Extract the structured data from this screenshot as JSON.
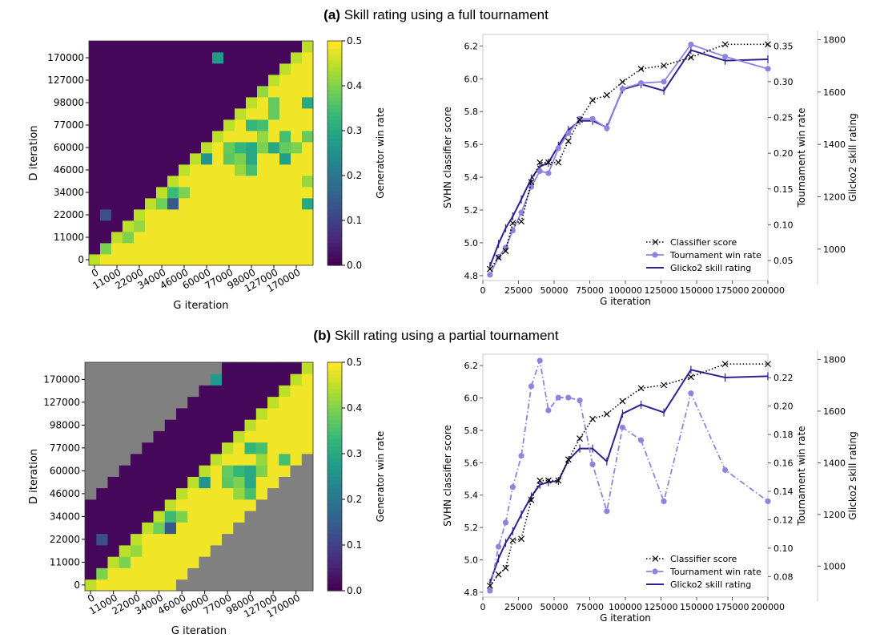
{
  "panels": [
    {
      "label": "(a)",
      "title": "Skill rating using a full tournament",
      "heatmap": {
        "xlabel": "G iteration",
        "ylabel": "D iteration",
        "colorbar_label": "Generator win rate",
        "colorbar_ticks": [
          "0.0",
          "0.1",
          "0.2",
          "0.3",
          "0.4",
          "0.5"
        ],
        "x_ticks": [
          "0",
          "11000",
          "22000",
          "34000",
          "46000",
          "60000",
          "77000",
          "98000",
          "127000",
          "170000"
        ],
        "y_ticks": [
          "0",
          "11000",
          "22000",
          "34000",
          "46000",
          "60000",
          "77000",
          "98000",
          "127000",
          "170000"
        ]
      },
      "line": {
        "xlabel": "G iteration",
        "ylabel_left": "SVHN classifier score",
        "ylabel_right": "Tournament win rate",
        "ylabel_far": "Glicko2 skill rating",
        "x_ticks": [
          "0",
          "25000",
          "50000",
          "75000",
          "100000",
          "125000",
          "150000",
          "175000",
          "200000"
        ],
        "y_left_ticks": [
          "4.8",
          "5.0",
          "5.2",
          "5.4",
          "5.6",
          "5.8",
          "6.0",
          "6.2"
        ],
        "y_right_ticks": [
          "0.05",
          "0.10",
          "0.15",
          "0.20",
          "0.25",
          "0.30",
          "0.35"
        ],
        "y_far_ticks": [
          "1000",
          "1200",
          "1400",
          "1600",
          "1800"
        ],
        "legend": [
          "Classifier score",
          "Tournament win rate",
          "Glicko2 skill rating"
        ]
      }
    },
    {
      "label": "(b)",
      "title": "Skill rating using a partial tournament",
      "heatmap": {
        "xlabel": "G iteration",
        "ylabel": "D iteration",
        "colorbar_label": "Generator win rate",
        "colorbar_ticks": [
          "0.0",
          "0.1",
          "0.2",
          "0.3",
          "0.4",
          "0.5"
        ],
        "x_ticks": [
          "0",
          "11000",
          "22000",
          "34000",
          "46000",
          "60000",
          "77000",
          "98000",
          "127000",
          "170000"
        ],
        "y_ticks": [
          "0",
          "11000",
          "22000",
          "34000",
          "46000",
          "60000",
          "77000",
          "98000",
          "127000",
          "170000"
        ]
      },
      "line": {
        "xlabel": "G iteration",
        "ylabel_left": "SVHN classifier score",
        "ylabel_right": "Tournament win rate",
        "ylabel_far": "Glicko2 skill rating",
        "x_ticks": [
          "0",
          "25000",
          "50000",
          "75000",
          "100000",
          "125000",
          "150000",
          "175000",
          "200000"
        ],
        "y_left_ticks": [
          "4.8",
          "5.0",
          "5.2",
          "5.4",
          "5.6",
          "5.8",
          "6.0",
          "6.2"
        ],
        "y_right_ticks": [
          "0.08",
          "0.10",
          "0.12",
          "0.14",
          "0.16",
          "0.18",
          "0.20",
          "0.22"
        ],
        "y_far_ticks": [
          "1000",
          "1200",
          "1400",
          "1600",
          "1800"
        ],
        "legend": [
          "Classifier score",
          "Tournament win rate",
          "Glicko2 skill rating"
        ]
      }
    }
  ],
  "colors": {
    "classifier": "#000000",
    "winrate": "#8f83e0",
    "glicko": "#2a2392",
    "not_played": "#808080"
  },
  "chart_data": [
    {
      "type": "heatmap",
      "panel": "a",
      "grid_size": 20,
      "x_range": [
        0,
        170000
      ],
      "y_range": [
        0,
        170000
      ],
      "value_range": [
        0.0,
        0.5
      ],
      "colormap": "viridis",
      "description_of_values": "Generator win rate of G checkpoint (column) vs D checkpoint (row); near 0.5 below the diagonal, near 0 above",
      "uniform_values": {
        "upper_left": 0.01,
        "lower_right": 0.49
      },
      "notable_cells": [
        {
          "row": 18,
          "col": 11,
          "value": 0.27
        },
        {
          "row": 15,
          "col": 15,
          "value": 0.42
        },
        {
          "row": 14,
          "col": 16,
          "value": 0.38
        },
        {
          "row": 14,
          "col": 19,
          "value": 0.3
        },
        {
          "row": 13,
          "col": 16,
          "value": 0.38
        },
        {
          "row": 12,
          "col": 14,
          "value": 0.33
        },
        {
          "row": 12,
          "col": 15,
          "value": 0.35
        },
        {
          "row": 11,
          "col": 15,
          "value": 0.42
        },
        {
          "row": 11,
          "col": 17,
          "value": 0.35
        },
        {
          "row": 11,
          "col": 19,
          "value": 0.38
        },
        {
          "row": 10,
          "col": 12,
          "value": 0.38
        },
        {
          "row": 10,
          "col": 13,
          "value": 0.33
        },
        {
          "row": 10,
          "col": 14,
          "value": 0.3
        },
        {
          "row": 10,
          "col": 15,
          "value": 0.4
        },
        {
          "row": 10,
          "col": 16,
          "value": 0.3
        },
        {
          "row": 10,
          "col": 17,
          "value": 0.38
        },
        {
          "row": 10,
          "col": 18,
          "value": 0.4
        },
        {
          "row": 9,
          "col": 10,
          "value": 0.26
        },
        {
          "row": 9,
          "col": 12,
          "value": 0.37
        },
        {
          "row": 9,
          "col": 13,
          "value": 0.4
        },
        {
          "row": 9,
          "col": 14,
          "value": 0.3
        },
        {
          "row": 9,
          "col": 17,
          "value": 0.28
        },
        {
          "row": 8,
          "col": 13,
          "value": 0.42
        },
        {
          "row": 8,
          "col": 14,
          "value": 0.35
        },
        {
          "row": 7,
          "col": 19,
          "value": 0.42
        },
        {
          "row": 6,
          "col": 7,
          "value": 0.34
        },
        {
          "row": 6,
          "col": 8,
          "value": 0.4
        },
        {
          "row": 5,
          "col": 6,
          "value": 0.39
        },
        {
          "row": 5,
          "col": 7,
          "value": 0.14
        },
        {
          "row": 5,
          "col": 19,
          "value": 0.3
        },
        {
          "row": 4,
          "col": 1,
          "value": 0.12
        },
        {
          "row": 3,
          "col": 4,
          "value": 0.42
        },
        {
          "row": 2,
          "col": 3,
          "value": 0.4
        },
        {
          "row": 1,
          "col": 1,
          "value": 0.4
        }
      ]
    },
    {
      "type": "line",
      "panel": "a",
      "xlabel": "G iteration",
      "xlim": [
        0,
        200000
      ],
      "series": [
        {
          "name": "Classifier score",
          "axis": "SVHN classifier score",
          "ylim": [
            4.77,
            6.27
          ],
          "x": [
            5000,
            11000,
            16000,
            21000,
            27000,
            34000,
            40000,
            46000,
            53000,
            60000,
            68000,
            77000,
            87000,
            98000,
            111000,
            127000,
            146000,
            170000,
            200000
          ],
          "y": [
            4.84,
            4.91,
            4.95,
            5.12,
            5.13,
            5.37,
            5.49,
            5.49,
            5.49,
            5.62,
            5.75,
            5.87,
            5.9,
            5.98,
            6.06,
            6.08,
            6.13,
            6.21,
            6.21
          ]
        },
        {
          "name": "Tournament win rate",
          "axis": "Tournament win rate",
          "ylim": [
            0.022,
            0.366
          ],
          "x": [
            5000,
            11000,
            16000,
            21000,
            27000,
            34000,
            40000,
            46000,
            53000,
            60000,
            68000,
            77000,
            87000,
            98000,
            111000,
            127000,
            146000,
            170000,
            200000
          ],
          "y": [
            0.03,
            0.055,
            0.068,
            0.092,
            0.117,
            0.153,
            0.175,
            0.172,
            0.207,
            0.228,
            0.248,
            0.248,
            0.235,
            0.29,
            0.298,
            0.3,
            0.352,
            0.335,
            0.318
          ]
        },
        {
          "name": "Glicko2 skill rating",
          "axis": "Glicko2 skill rating",
          "ylim": [
            880,
            1820
          ],
          "x": [
            5000,
            11000,
            16000,
            21000,
            27000,
            34000,
            40000,
            46000,
            53000,
            60000,
            68000,
            77000,
            87000,
            98000,
            111000,
            127000,
            146000,
            170000,
            200000
          ],
          "y": [
            935,
            1020,
            1080,
            1125,
            1190,
            1270,
            1315,
            1330,
            1395,
            1455,
            1490,
            1490,
            1465,
            1610,
            1630,
            1605,
            1760,
            1720,
            1725
          ]
        }
      ]
    },
    {
      "type": "heatmap",
      "panel": "b",
      "grid_size": 20,
      "x_range": [
        0,
        170000
      ],
      "y_range": [
        0,
        170000
      ],
      "value_range": [
        0.0,
        0.5
      ],
      "colormap": "viridis",
      "description_of_values": "Partial tournament: only cells near the diagonal evaluated, others shown grey (not played)",
      "uniform_values": {
        "upper_left": 0.01,
        "lower_right": 0.49
      },
      "notable_cells": [
        {
          "row": 18,
          "col": 11,
          "value": 0.27
        },
        {
          "row": 12,
          "col": 14,
          "value": 0.33
        },
        {
          "row": 12,
          "col": 15,
          "value": 0.35
        },
        {
          "row": 11,
          "col": 15,
          "value": 0.42
        },
        {
          "row": 11,
          "col": 17,
          "value": 0.35
        },
        {
          "row": 11,
          "col": 19,
          "value": 0.38
        },
        {
          "row": 10,
          "col": 12,
          "value": 0.38
        },
        {
          "row": 10,
          "col": 13,
          "value": 0.33
        },
        {
          "row": 10,
          "col": 14,
          "value": 0.3
        },
        {
          "row": 10,
          "col": 15,
          "value": 0.4
        },
        {
          "row": 9,
          "col": 10,
          "value": 0.26
        },
        {
          "row": 9,
          "col": 12,
          "value": 0.37
        },
        {
          "row": 9,
          "col": 13,
          "value": 0.4
        },
        {
          "row": 9,
          "col": 14,
          "value": 0.3
        },
        {
          "row": 8,
          "col": 13,
          "value": 0.42
        },
        {
          "row": 8,
          "col": 14,
          "value": 0.35
        },
        {
          "row": 6,
          "col": 7,
          "value": 0.34
        },
        {
          "row": 6,
          "col": 8,
          "value": 0.4
        },
        {
          "row": 5,
          "col": 6,
          "value": 0.39
        },
        {
          "row": 5,
          "col": 7,
          "value": 0.14
        },
        {
          "row": 4,
          "col": 1,
          "value": 0.12
        },
        {
          "row": 3,
          "col": 4,
          "value": 0.42
        },
        {
          "row": 2,
          "col": 3,
          "value": 0.4
        },
        {
          "row": 1,
          "col": 1,
          "value": 0.4
        }
      ]
    },
    {
      "type": "line",
      "panel": "b",
      "xlabel": "G iteration",
      "xlim": [
        0,
        200000
      ],
      "series": [
        {
          "name": "Classifier score",
          "axis": "SVHN classifier score",
          "ylim": [
            4.77,
            6.27
          ],
          "x": [
            5000,
            11000,
            16000,
            21000,
            27000,
            34000,
            40000,
            46000,
            53000,
            60000,
            68000,
            77000,
            87000,
            98000,
            111000,
            127000,
            146000,
            170000,
            200000
          ],
          "y": [
            4.84,
            4.91,
            4.95,
            5.12,
            5.13,
            5.37,
            5.49,
            5.49,
            5.49,
            5.62,
            5.75,
            5.87,
            5.9,
            5.98,
            6.06,
            6.08,
            6.13,
            6.21,
            6.21
          ]
        },
        {
          "name": "Tournament win rate",
          "axis": "Tournament win rate",
          "ylim": [
            0.0655,
            0.2365
          ],
          "x": [
            5000,
            11000,
            16000,
            21000,
            27000,
            34000,
            40000,
            46000,
            53000,
            60000,
            68000,
            77000,
            87000,
            98000,
            111000,
            127000,
            146000,
            170000,
            200000
          ],
          "y": [
            0.07,
            0.101,
            0.118,
            0.143,
            0.165,
            0.214,
            0.232,
            0.197,
            0.206,
            0.206,
            0.204,
            0.159,
            0.126,
            0.185,
            0.176,
            0.133,
            0.209,
            0.155,
            0.133
          ]
        },
        {
          "name": "Glicko2 skill rating",
          "axis": "Glicko2 skill rating",
          "ylim": [
            880,
            1820
          ],
          "x": [
            5000,
            11000,
            16000,
            21000,
            27000,
            34000,
            40000,
            46000,
            53000,
            60000,
            68000,
            77000,
            87000,
            98000,
            111000,
            127000,
            146000,
            170000,
            200000
          ],
          "y": [
            935,
            1030,
            1090,
            1135,
            1200,
            1270,
            1315,
            1325,
            1330,
            1410,
            1455,
            1455,
            1405,
            1590,
            1625,
            1595,
            1760,
            1730,
            1735
          ]
        }
      ]
    }
  ]
}
